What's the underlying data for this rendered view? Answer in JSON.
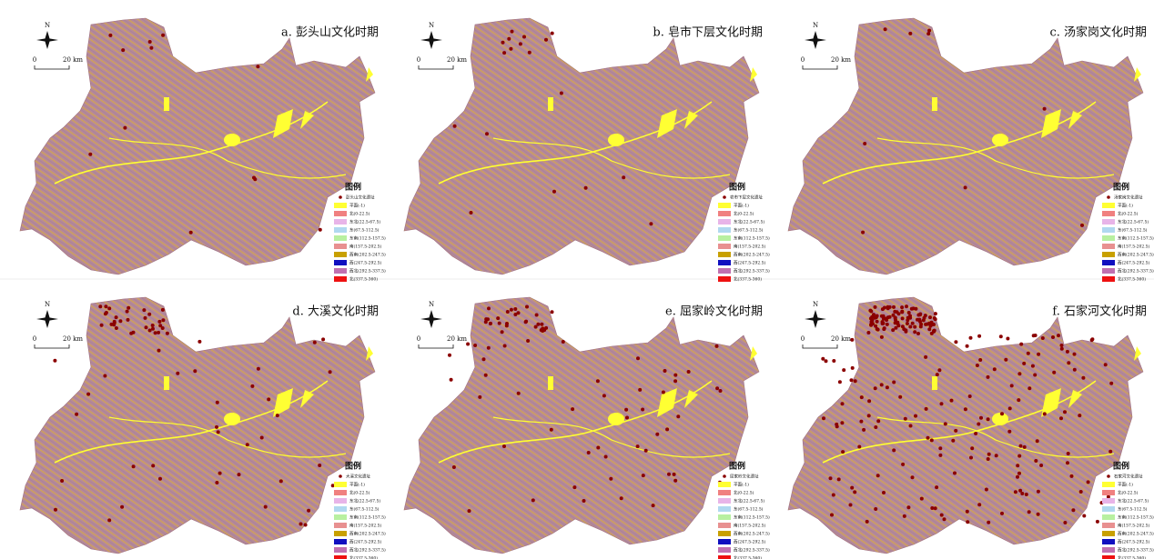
{
  "panels": [
    {
      "title": "a. 彭头山文化时期",
      "site_label": "彭头山文化遗址"
    },
    {
      "title": "b. 皂市下层文化时期",
      "site_label": "皂市下层文化遗址"
    },
    {
      "title": "c. 汤家岗文化时期",
      "site_label": "汤家岗文化遗址"
    },
    {
      "title": "d. 大溪文化时期",
      "site_label": "大溪文化遗址"
    },
    {
      "title": "e. 屈家岭文化时期",
      "site_label": "屈家岭文化遗址"
    },
    {
      "title": "f. 石家河文化时期",
      "site_label": "石家河文化遗址"
    }
  ],
  "north": "N",
  "scale": {
    "start": "0",
    "end": "20 km"
  },
  "legend": {
    "title": "图例",
    "items": [
      {
        "label": "平面(-1)",
        "color": "#ffff33"
      },
      {
        "label": "北(0-22.5)",
        "color": "#f08080"
      },
      {
        "label": "东北(22.5-67.5)",
        "color": "#e8b4e8"
      },
      {
        "label": "东(67.5-112.5)",
        "color": "#b0d8f0"
      },
      {
        "label": "东南(112.5-157.5)",
        "color": "#b8f0a0"
      },
      {
        "label": "南(157.5-202.5)",
        "color": "#e89090"
      },
      {
        "label": "西南(202.5-247.5)",
        "color": "#c8a000"
      },
      {
        "label": "西(247.5-292.5)",
        "color": "#1010c0"
      },
      {
        "label": "西北(292.5-337.5)",
        "color": "#c070b0"
      },
      {
        "label": "北(337.5-360)",
        "color": "#ee1111"
      }
    ]
  }
}
